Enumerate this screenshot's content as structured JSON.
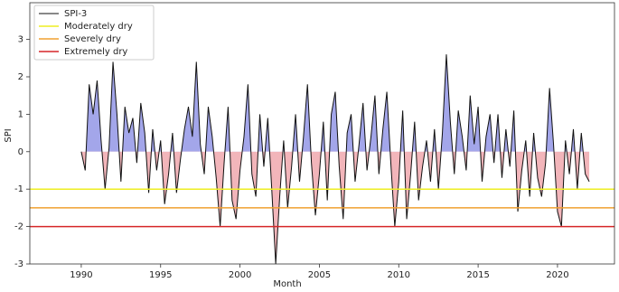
{
  "chart_data": {
    "type": "area-line",
    "xlabel": "Month",
    "ylabel": "SPI",
    "xlim": [
      1986.76,
      2023.59
    ],
    "ylim": [
      -3,
      3.98
    ],
    "xticks": [
      1990,
      1995,
      2000,
      2005,
      2010,
      2015,
      2020
    ],
    "yticks": [
      -3,
      -2,
      -1,
      0,
      1,
      2,
      3
    ],
    "positive_color": "#a3a6ea",
    "negative_color": "#f2b5ba",
    "legend": "upper left",
    "x": [
      1990,
      1990.25,
      1990.5,
      1990.75,
      1991,
      1991.25,
      1991.5,
      1991.75,
      1992,
      1992.25,
      1992.5,
      1992.75,
      1993,
      1993.25,
      1993.5,
      1993.75,
      1994,
      1994.25,
      1994.5,
      1994.75,
      1995,
      1995.25,
      1995.5,
      1995.75,
      1996,
      1996.25,
      1996.5,
      1996.75,
      1997,
      1997.25,
      1997.5,
      1997.75,
      1998,
      1998.25,
      1998.5,
      1998.75,
      1999,
      1999.25,
      1999.5,
      1999.75,
      2000,
      2000.25,
      2000.5,
      2000.75,
      2001,
      2001.25,
      2001.5,
      2001.75,
      2002,
      2002.25,
      2002.5,
      2002.75,
      2003,
      2003.25,
      2003.5,
      2003.75,
      2004,
      2004.25,
      2004.5,
      2004.75,
      2005,
      2005.25,
      2005.5,
      2005.75,
      2006,
      2006.25,
      2006.5,
      2006.75,
      2007,
      2007.25,
      2007.5,
      2007.75,
      2008,
      2008.25,
      2008.5,
      2008.75,
      2009,
      2009.25,
      2009.5,
      2009.75,
      2010,
      2010.25,
      2010.5,
      2010.75,
      2011,
      2011.25,
      2011.5,
      2011.75,
      2012,
      2012.25,
      2012.5,
      2012.75,
      2013,
      2013.25,
      2013.5,
      2013.75,
      2014,
      2014.25,
      2014.5,
      2014.75,
      2015,
      2015.25,
      2015.5,
      2015.75,
      2016,
      2016.25,
      2016.5,
      2016.75,
      2017,
      2017.25,
      2017.5,
      2017.75,
      2018,
      2018.25,
      2018.5,
      2018.75,
      2019,
      2019.25,
      2019.5,
      2019.75,
      2020,
      2020.25,
      2020.5,
      2020.75,
      2021,
      2021.25,
      2021.5,
      2021.75,
      2022
    ],
    "series": [
      {
        "name": "SPI-3",
        "color": "#111111",
        "values": [
          0,
          -0.5,
          1.8,
          1.0,
          1.9,
          0.3,
          -1.0,
          0.1,
          2.4,
          1.0,
          -0.8,
          1.2,
          0.5,
          0.9,
          -0.3,
          1.3,
          0.5,
          -1.1,
          0.6,
          -0.5,
          0.3,
          -1.4,
          -0.6,
          0.5,
          -1.1,
          -0.2,
          0.6,
          1.2,
          0.4,
          2.4,
          0.2,
          -0.6,
          1.2,
          0.4,
          -0.7,
          -2.0,
          -0.3,
          1.2,
          -1.3,
          -1.8,
          -0.5,
          0.4,
          1.8,
          -0.6,
          -1.2,
          1.0,
          -0.4,
          0.9,
          -1.0,
          -3.0,
          -1.2,
          0.3,
          -1.5,
          -0.4,
          1.0,
          -0.8,
          0.4,
          1.8,
          -0.3,
          -1.7,
          -0.6,
          0.8,
          -1.3,
          1.0,
          1.6,
          -0.4,
          -1.8,
          0.5,
          1.0,
          -0.8,
          0.2,
          1.3,
          -0.5,
          0.4,
          1.5,
          -0.6,
          0.6,
          1.6,
          -0.3,
          -2.0,
          -0.8,
          1.1,
          -1.8,
          -0.6,
          0.8,
          -1.3,
          -0.4,
          0.3,
          -0.8,
          0.6,
          -1.0,
          0.5,
          2.6,
          0.8,
          -0.6,
          1.1,
          0.4,
          -0.5,
          1.5,
          0.2,
          1.2,
          -0.8,
          0.4,
          1.0,
          -0.3,
          1.0,
          -0.7,
          0.6,
          -0.4,
          1.1,
          -1.6,
          -0.5,
          0.3,
          -1.2,
          0.5,
          -0.7,
          -1.2,
          -0.3,
          1.7,
          0.2,
          -1.6,
          -2.0,
          0.3,
          -0.6,
          0.6,
          -1.0,
          0.5,
          -0.6,
          -0.8
        ]
      }
    ],
    "reference_lines": [
      {
        "name": "Moderately dry",
        "color": "#eeee22",
        "value": -1
      },
      {
        "name": "Severely dry",
        "color": "#f0a030",
        "value": -1.5
      },
      {
        "name": "Extremely dry",
        "color": "#d62728",
        "value": -2
      }
    ]
  }
}
